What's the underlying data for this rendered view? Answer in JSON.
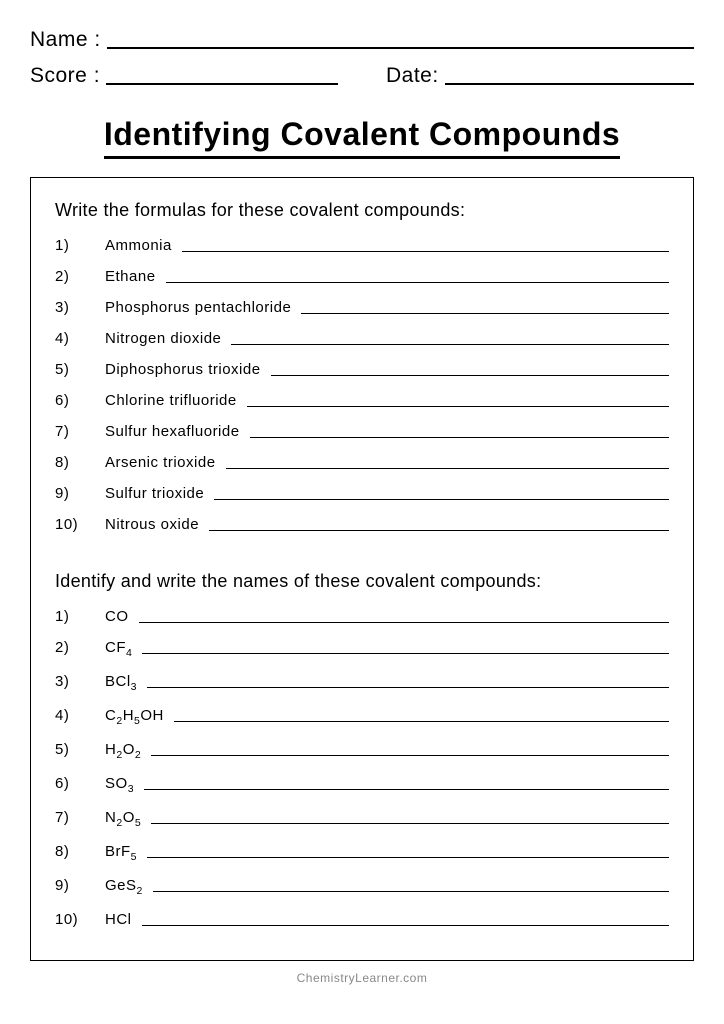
{
  "header": {
    "name_label": "Name :",
    "score_label": "Score :",
    "date_label": "Date:"
  },
  "title": "Identifying Covalent Compounds",
  "section1": {
    "prompt": "Write the formulas for these covalent compounds:",
    "items": [
      {
        "num": "1)",
        "label": "Ammonia"
      },
      {
        "num": "2)",
        "label": "Ethane"
      },
      {
        "num": "3)",
        "label": "Phosphorus pentachloride"
      },
      {
        "num": "4)",
        "label": "Nitrogen dioxide"
      },
      {
        "num": "5)",
        "label": "Diphosphorus trioxide"
      },
      {
        "num": "6)",
        "label": "Chlorine trifluoride"
      },
      {
        "num": "7)",
        "label": "Sulfur hexafluoride"
      },
      {
        "num": "8)",
        "label": "Arsenic trioxide"
      },
      {
        "num": "9)",
        "label": "Sulfur trioxide"
      },
      {
        "num": "10)",
        "label": "Nitrous oxide"
      }
    ]
  },
  "section2": {
    "prompt": "Identify and write the names of these covalent compounds:",
    "items": [
      {
        "num": "1)",
        "formula": "CO"
      },
      {
        "num": "2)",
        "formula": "CF<sub>4</sub>"
      },
      {
        "num": "3)",
        "formula": "BCl<sub>3</sub>"
      },
      {
        "num": "4)",
        "formula": "C<sub>2</sub>H<sub>5</sub>OH"
      },
      {
        "num": "5)",
        "formula": "H<sub>2</sub>O<sub>2</sub>"
      },
      {
        "num": "6)",
        "formula": "SO<sub>3</sub>"
      },
      {
        "num": "7)",
        "formula": "N<sub>2</sub>O<sub>5</sub>"
      },
      {
        "num": "8)",
        "formula": "BrF<sub>5</sub>"
      },
      {
        "num": "9)",
        "formula": "GeS<sub>2</sub>"
      },
      {
        "num": "10)",
        "formula": "HCl"
      }
    ]
  },
  "footer": "ChemistryLearner.com",
  "colors": {
    "text": "#000000",
    "background": "#ffffff",
    "footer_text": "#888888"
  }
}
